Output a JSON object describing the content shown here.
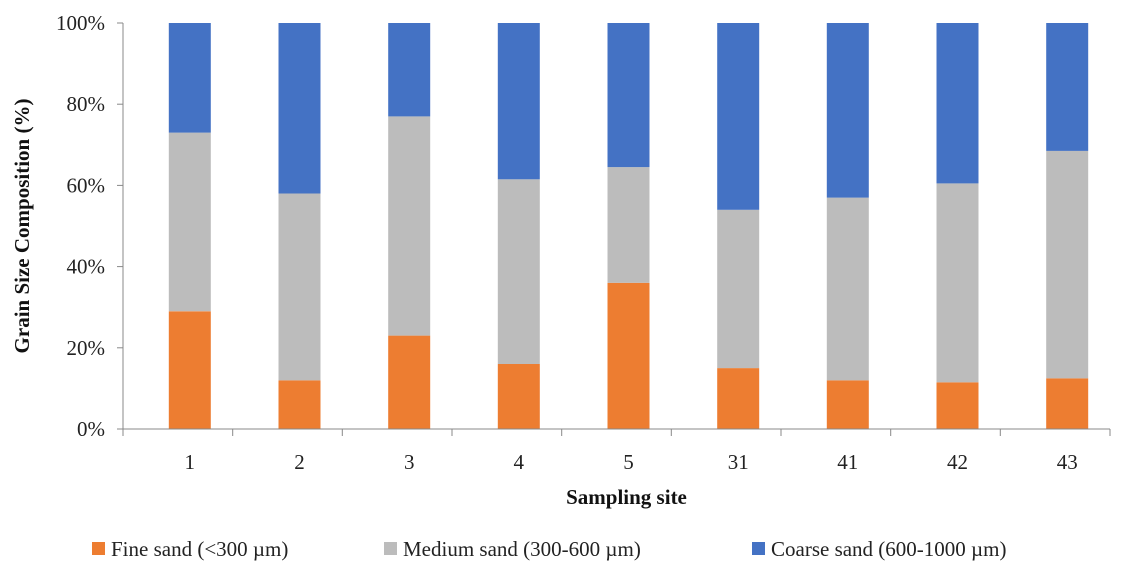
{
  "chart_data": {
    "type": "bar",
    "stacked": true,
    "normalized_percent": true,
    "categories": [
      "1",
      "2",
      "3",
      "4",
      "5",
      "31",
      "41",
      "42",
      "43"
    ],
    "series": [
      {
        "name": "Fine sand (<300 µm)",
        "color": "#ED7D31",
        "values": [
          29,
          12,
          23,
          16,
          36,
          15,
          12,
          11.5,
          12.5
        ]
      },
      {
        "name": "Medium sand (300-600 µm)",
        "color": "#BCBCBC",
        "values": [
          44,
          46,
          54,
          45.5,
          28.5,
          39,
          45,
          49,
          56
        ]
      },
      {
        "name": "Coarse sand (600-1000 µm)",
        "color": "#4472C4",
        "values": [
          27,
          42,
          23,
          38.5,
          35.5,
          46,
          43,
          39.5,
          31.5
        ]
      }
    ],
    "xlabel": "Sampling site",
    "ylabel": "Grain Size Composition (%)",
    "ylim": [
      0,
      100
    ],
    "yticks": [
      "0%",
      "20%",
      "40%",
      "60%",
      "80%",
      "100%"
    ],
    "grid": false,
    "legend_position": "bottom"
  }
}
